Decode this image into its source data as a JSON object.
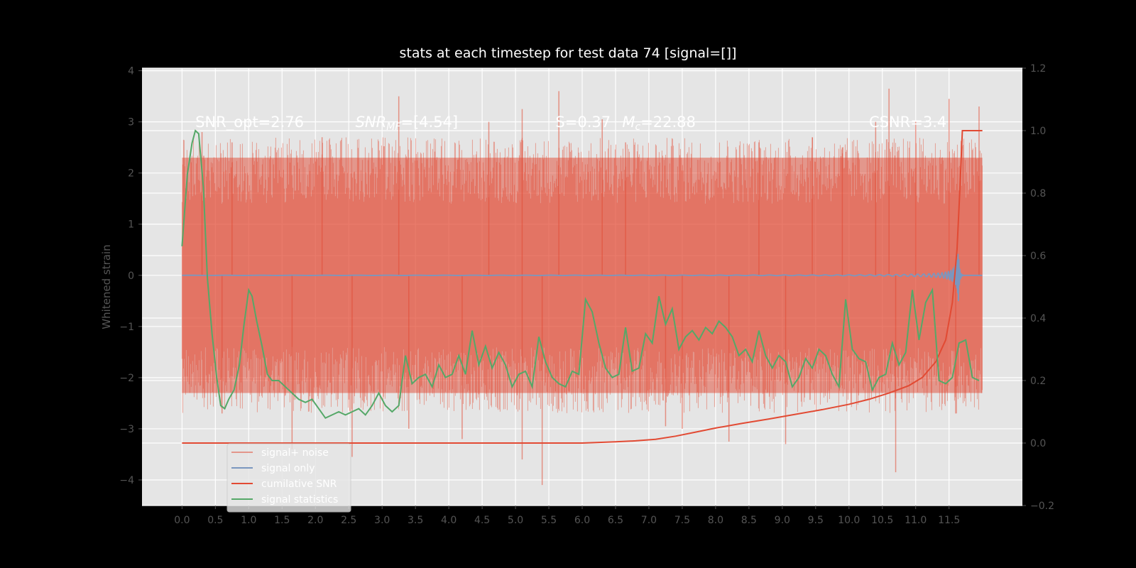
{
  "chart_data": {
    "type": "line",
    "title": "stats at each timestep for test data 74 [signal=[]]",
    "ylabel": "Whitened strain",
    "ylabel_right": "",
    "x_ticks": [
      0.0,
      0.5,
      1.0,
      1.5,
      2.0,
      2.5,
      3.0,
      3.5,
      4.0,
      4.5,
      5.0,
      5.5,
      6.0,
      6.5,
      7.0,
      7.5,
      8.0,
      8.5,
      9.0,
      9.5,
      10.0,
      10.5,
      11.0,
      11.5
    ],
    "y_ticks_left": [
      -4,
      -3,
      -2,
      -1,
      0,
      1,
      2,
      3,
      4
    ],
    "y_ticks_right": [
      -0.2,
      0.0,
      0.2,
      0.4,
      0.6,
      0.8,
      1.0,
      1.2
    ],
    "xlim": [
      -0.6,
      12.6
    ],
    "ylim_left": [
      -4.5,
      4.05
    ],
    "ylim_right": [
      -0.2,
      1.2
    ],
    "grid": true,
    "legend_position": "lower-left",
    "annotations": [
      {
        "text": "SNR_opt=2.76",
        "x": 0.2,
        "y": 2.9
      },
      {
        "text": "SNR_{MF}=[4.54]",
        "x": 2.6,
        "y": 2.9
      },
      {
        "text": "S=0.37",
        "x": 5.6,
        "y": 2.9
      },
      {
        "text": "M_c=22.88",
        "x": 6.6,
        "y": 2.9
      },
      {
        "text": "CSNR=3.4",
        "x": 10.3,
        "y": 2.9
      }
    ],
    "series": [
      {
        "name": "signal+ noise",
        "axis": "left",
        "color": "#E24A33",
        "opacity": 0.5,
        "kind": "noise",
        "x_range": [
          0.0,
          12.0
        ],
        "envelope": [
          -2.3,
          2.3
        ],
        "spikes": [
          {
            "x": 0.3,
            "y": 2.8
          },
          {
            "x": 0.6,
            "y": -2.7
          },
          {
            "x": 0.75,
            "y": 2.6
          },
          {
            "x": 1.65,
            "y": -3.4
          },
          {
            "x": 2.1,
            "y": 2.7
          },
          {
            "x": 2.55,
            "y": -3.55
          },
          {
            "x": 3.25,
            "y": 3.5
          },
          {
            "x": 3.4,
            "y": -3.0
          },
          {
            "x": 4.2,
            "y": -3.2
          },
          {
            "x": 4.6,
            "y": 3.0
          },
          {
            "x": 5.1,
            "y": 3.25
          },
          {
            "x": 5.1,
            "y": -3.6
          },
          {
            "x": 5.4,
            "y": -4.1
          },
          {
            "x": 5.65,
            "y": 3.6
          },
          {
            "x": 6.3,
            "y": 3.05
          },
          {
            "x": 6.65,
            "y": 2.6
          },
          {
            "x": 7.25,
            "y": -2.95
          },
          {
            "x": 7.5,
            "y": -3.0
          },
          {
            "x": 8.2,
            "y": -3.25
          },
          {
            "x": 8.65,
            "y": 2.6
          },
          {
            "x": 9.05,
            "y": -3.3
          },
          {
            "x": 9.45,
            "y": 2.7
          },
          {
            "x": 9.9,
            "y": 2.5
          },
          {
            "x": 10.4,
            "y": 3.0
          },
          {
            "x": 10.6,
            "y": 3.65
          },
          {
            "x": 10.7,
            "y": -3.85
          },
          {
            "x": 11.0,
            "y": 3.0
          },
          {
            "x": 11.5,
            "y": 3.45
          },
          {
            "x": 11.6,
            "y": -2.7
          },
          {
            "x": 11.95,
            "y": 3.3
          }
        ]
      },
      {
        "name": "signal only",
        "axis": "left",
        "color": "#7A97BF",
        "kind": "chirp",
        "x_range": [
          0.0,
          12.0
        ],
        "merger_x": 11.64,
        "peak_amplitude": 0.52
      },
      {
        "name": "cumilative SNR",
        "axis": "right",
        "color": "#E24A33",
        "points": [
          [
            0.0,
            0.0
          ],
          [
            6.0,
            0.0
          ],
          [
            6.5,
            0.004
          ],
          [
            6.8,
            0.007
          ],
          [
            7.1,
            0.012
          ],
          [
            7.4,
            0.022
          ],
          [
            7.7,
            0.035
          ],
          [
            8.0,
            0.048
          ],
          [
            8.4,
            0.063
          ],
          [
            8.8,
            0.077
          ],
          [
            9.2,
            0.092
          ],
          [
            9.6,
            0.107
          ],
          [
            10.0,
            0.124
          ],
          [
            10.3,
            0.14
          ],
          [
            10.6,
            0.16
          ],
          [
            10.9,
            0.184
          ],
          [
            11.1,
            0.21
          ],
          [
            11.3,
            0.26
          ],
          [
            11.45,
            0.33
          ],
          [
            11.55,
            0.45
          ],
          [
            11.62,
            0.62
          ],
          [
            11.66,
            0.8
          ],
          [
            11.7,
            1.0
          ],
          [
            12.0,
            1.0
          ]
        ]
      },
      {
        "name": "signal statistics",
        "axis": "right",
        "color": "#55A868",
        "points": [
          [
            0.0,
            0.63
          ],
          [
            0.08,
            0.86
          ],
          [
            0.15,
            0.96
          ],
          [
            0.2,
            1.0
          ],
          [
            0.25,
            0.99
          ],
          [
            0.32,
            0.82
          ],
          [
            0.38,
            0.53
          ],
          [
            0.45,
            0.35
          ],
          [
            0.52,
            0.21
          ],
          [
            0.58,
            0.12
          ],
          [
            0.64,
            0.11
          ],
          [
            0.7,
            0.14
          ],
          [
            0.78,
            0.17
          ],
          [
            0.86,
            0.25
          ],
          [
            0.93,
            0.38
          ],
          [
            1.0,
            0.49
          ],
          [
            1.05,
            0.47
          ],
          [
            1.12,
            0.39
          ],
          [
            1.2,
            0.31
          ],
          [
            1.28,
            0.22
          ],
          [
            1.35,
            0.2
          ],
          [
            1.45,
            0.2
          ],
          [
            1.55,
            0.18
          ],
          [
            1.65,
            0.16
          ],
          [
            1.75,
            0.14
          ],
          [
            1.85,
            0.13
          ],
          [
            1.95,
            0.14
          ],
          [
            2.05,
            0.11
          ],
          [
            2.15,
            0.08
          ],
          [
            2.25,
            0.09
          ],
          [
            2.35,
            0.1
          ],
          [
            2.45,
            0.09
          ],
          [
            2.55,
            0.1
          ],
          [
            2.65,
            0.11
          ],
          [
            2.75,
            0.09
          ],
          [
            2.85,
            0.12
          ],
          [
            2.95,
            0.16
          ],
          [
            3.05,
            0.12
          ],
          [
            3.15,
            0.1
          ],
          [
            3.25,
            0.12
          ],
          [
            3.35,
            0.28
          ],
          [
            3.45,
            0.19
          ],
          [
            3.55,
            0.21
          ],
          [
            3.65,
            0.22
          ],
          [
            3.75,
            0.18
          ],
          [
            3.85,
            0.25
          ],
          [
            3.95,
            0.21
          ],
          [
            4.05,
            0.22
          ],
          [
            4.15,
            0.28
          ],
          [
            4.25,
            0.22
          ],
          [
            4.35,
            0.36
          ],
          [
            4.45,
            0.25
          ],
          [
            4.55,
            0.31
          ],
          [
            4.65,
            0.24
          ],
          [
            4.75,
            0.29
          ],
          [
            4.85,
            0.25
          ],
          [
            4.95,
            0.18
          ],
          [
            5.05,
            0.22
          ],
          [
            5.15,
            0.23
          ],
          [
            5.25,
            0.18
          ],
          [
            5.35,
            0.34
          ],
          [
            5.45,
            0.26
          ],
          [
            5.55,
            0.21
          ],
          [
            5.65,
            0.19
          ],
          [
            5.75,
            0.18
          ],
          [
            5.85,
            0.23
          ],
          [
            5.95,
            0.22
          ],
          [
            6.05,
            0.46
          ],
          [
            6.15,
            0.42
          ],
          [
            6.25,
            0.32
          ],
          [
            6.35,
            0.24
          ],
          [
            6.45,
            0.21
          ],
          [
            6.55,
            0.22
          ],
          [
            6.65,
            0.37
          ],
          [
            6.75,
            0.23
          ],
          [
            6.85,
            0.24
          ],
          [
            6.95,
            0.35
          ],
          [
            7.05,
            0.32
          ],
          [
            7.15,
            0.47
          ],
          [
            7.25,
            0.38
          ],
          [
            7.35,
            0.43
          ],
          [
            7.45,
            0.3
          ],
          [
            7.55,
            0.34
          ],
          [
            7.65,
            0.36
          ],
          [
            7.75,
            0.33
          ],
          [
            7.85,
            0.37
          ],
          [
            7.95,
            0.35
          ],
          [
            8.05,
            0.39
          ],
          [
            8.15,
            0.37
          ],
          [
            8.25,
            0.34
          ],
          [
            8.35,
            0.28
          ],
          [
            8.45,
            0.3
          ],
          [
            8.55,
            0.26
          ],
          [
            8.65,
            0.36
          ],
          [
            8.75,
            0.28
          ],
          [
            8.85,
            0.24
          ],
          [
            8.95,
            0.28
          ],
          [
            9.05,
            0.26
          ],
          [
            9.15,
            0.18
          ],
          [
            9.25,
            0.21
          ],
          [
            9.35,
            0.27
          ],
          [
            9.45,
            0.24
          ],
          [
            9.55,
            0.3
          ],
          [
            9.65,
            0.28
          ],
          [
            9.75,
            0.22
          ],
          [
            9.85,
            0.18
          ],
          [
            9.95,
            0.46
          ],
          [
            10.05,
            0.3
          ],
          [
            10.15,
            0.27
          ],
          [
            10.25,
            0.26
          ],
          [
            10.35,
            0.17
          ],
          [
            10.45,
            0.21
          ],
          [
            10.55,
            0.22
          ],
          [
            10.65,
            0.32
          ],
          [
            10.75,
            0.25
          ],
          [
            10.85,
            0.29
          ],
          [
            10.95,
            0.49
          ],
          [
            11.05,
            0.33
          ],
          [
            11.15,
            0.45
          ],
          [
            11.25,
            0.49
          ],
          [
            11.35,
            0.2
          ],
          [
            11.45,
            0.19
          ],
          [
            11.55,
            0.21
          ],
          [
            11.65,
            0.32
          ],
          [
            11.75,
            0.33
          ],
          [
            11.85,
            0.21
          ],
          [
            11.95,
            0.2
          ]
        ]
      }
    ]
  },
  "colors": {
    "figure_background": "#000000",
    "plot_background": "#E5E5E5",
    "grid": "#FFFFFF",
    "tick_text": "#555555",
    "title_text": "#FFFFFF",
    "annotation_text": "#FFFFFF"
  }
}
